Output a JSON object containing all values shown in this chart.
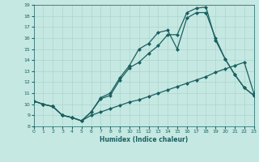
{
  "xlabel": "Humidex (Indice chaleur)",
  "xlim": [
    0,
    23
  ],
  "ylim": [
    8,
    19
  ],
  "xticks": [
    0,
    1,
    2,
    3,
    4,
    5,
    6,
    7,
    8,
    9,
    10,
    11,
    12,
    13,
    14,
    15,
    16,
    17,
    18,
    19,
    20,
    21,
    22,
    23
  ],
  "yticks": [
    8,
    9,
    10,
    11,
    12,
    13,
    14,
    15,
    16,
    17,
    18,
    19
  ],
  "bg_color": "#c5e8e2",
  "grid_color": "#aed4ce",
  "line_color": "#1a6060",
  "line1_x": [
    0,
    1,
    2,
    3,
    4,
    5,
    6,
    7,
    8,
    9,
    10,
    11,
    12,
    13,
    14,
    15,
    16,
    17,
    18,
    19,
    20,
    21,
    22,
    23
  ],
  "line1_y": [
    10.3,
    10.0,
    9.8,
    9.0,
    8.8,
    8.5,
    9.3,
    10.6,
    11.0,
    12.4,
    13.5,
    15.0,
    15.5,
    16.5,
    16.7,
    15.0,
    17.8,
    18.3,
    18.3,
    16.0,
    14.1,
    12.7,
    11.5,
    10.8
  ],
  "line2_x": [
    0,
    1,
    2,
    3,
    4,
    5,
    6,
    7,
    8,
    9,
    10,
    11,
    12,
    13,
    14,
    15,
    16,
    17,
    18,
    19,
    20,
    21,
    22,
    23
  ],
  "line2_y": [
    10.3,
    10.0,
    9.8,
    9.0,
    8.8,
    8.5,
    9.3,
    10.5,
    10.8,
    12.2,
    13.3,
    13.8,
    14.6,
    15.3,
    16.3,
    16.3,
    18.3,
    18.7,
    18.8,
    15.8,
    14.1,
    12.7,
    11.5,
    10.8
  ],
  "line3_x": [
    0,
    1,
    2,
    3,
    4,
    5,
    6,
    7,
    8,
    9,
    10,
    11,
    12,
    13,
    14,
    15,
    16,
    17,
    18,
    19,
    20,
    21,
    22,
    23
  ],
  "line3_y": [
    10.3,
    10.0,
    9.8,
    9.0,
    8.8,
    8.5,
    9.0,
    9.3,
    9.6,
    9.9,
    10.2,
    10.4,
    10.7,
    11.0,
    11.3,
    11.6,
    11.9,
    12.2,
    12.5,
    12.9,
    13.2,
    13.5,
    13.8,
    11.0
  ]
}
